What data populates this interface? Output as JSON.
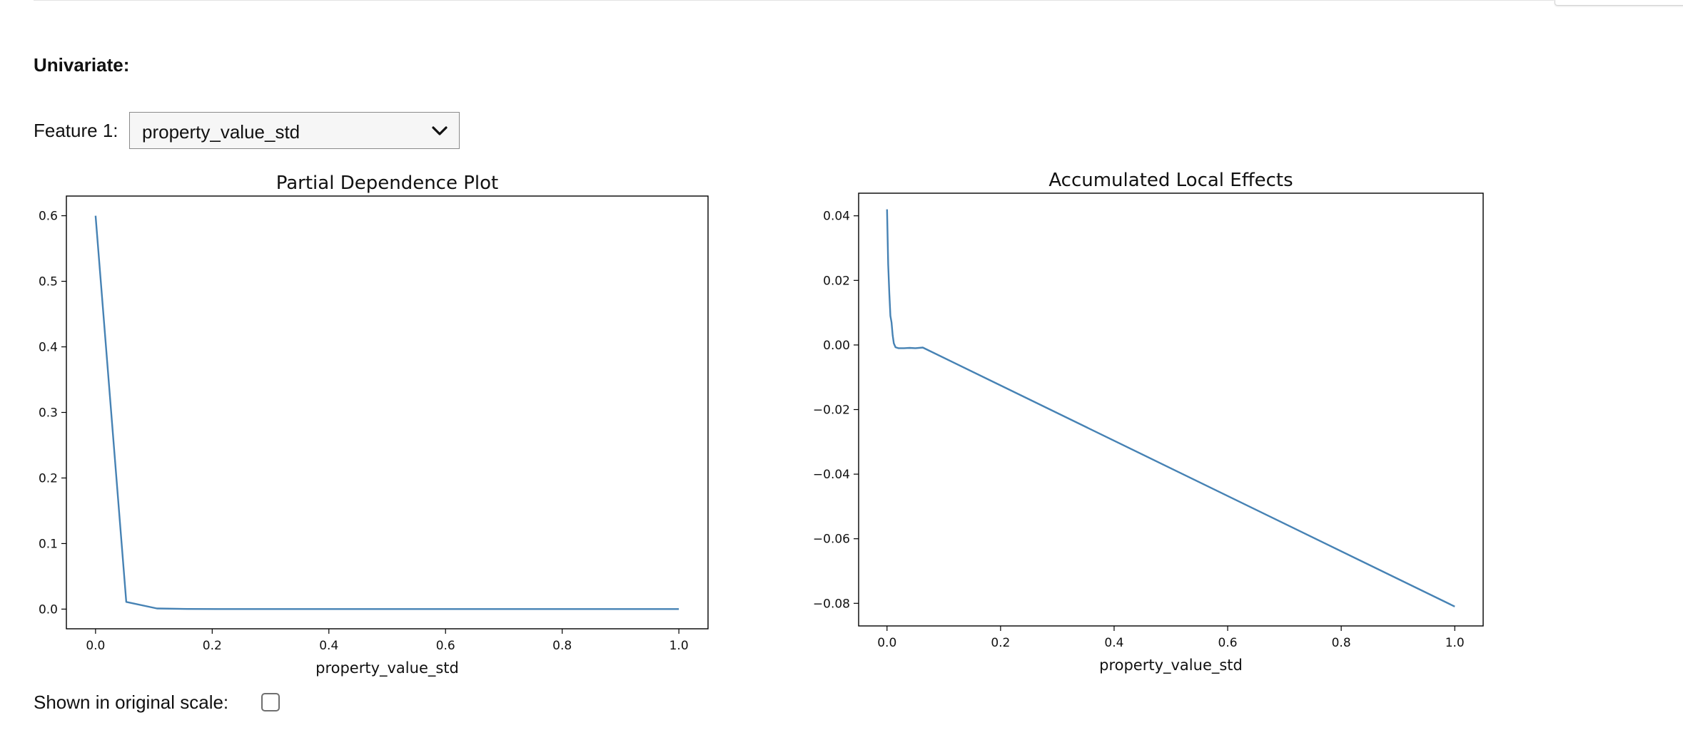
{
  "section": {
    "title": "Univariate:"
  },
  "feature_selector": {
    "label": "Feature 1:",
    "selected": "property_value_std",
    "icon": "chevron-down-icon"
  },
  "scale_toggle": {
    "label": "Shown in original scale:",
    "checked": false
  },
  "colors": {
    "line": "#4682b4"
  },
  "chart_data": [
    {
      "type": "line",
      "title": "Partial Dependence Plot",
      "xlabel": "property_value_std",
      "ylabel": "",
      "xlim": [
        -0.05,
        1.05
      ],
      "ylim": [
        -0.03,
        0.63
      ],
      "xticks": [
        0.0,
        0.2,
        0.4,
        0.6,
        0.8,
        1.0
      ],
      "xtick_labels": [
        "0.0",
        "0.2",
        "0.4",
        "0.6",
        "0.8",
        "1.0"
      ],
      "yticks": [
        0.0,
        0.1,
        0.2,
        0.3,
        0.4,
        0.5,
        0.6
      ],
      "ytick_labels": [
        "0.0",
        "0.1",
        "0.2",
        "0.3",
        "0.4",
        "0.5",
        "0.6"
      ],
      "grid": false,
      "series": [
        {
          "x": [
            0.0,
            0.0526,
            0.1053,
            0.1579,
            0.2105,
            0.2632,
            0.3158,
            0.3684,
            0.4211,
            0.4737,
            0.5263,
            0.5789,
            0.6316,
            0.6842,
            0.7368,
            0.7895,
            0.8421,
            0.8947,
            0.9474,
            1.0
          ],
          "y": [
            0.6,
            0.011,
            0.001,
            0.0002,
            0.0001,
            0.0001,
            0.0001,
            0.0001,
            0.0001,
            0.0001,
            0.0001,
            0.0001,
            0.0001,
            0.0001,
            0.0001,
            0.0001,
            0.0001,
            0.0001,
            0.0001,
            0.0001
          ]
        }
      ]
    },
    {
      "type": "line",
      "title": "Accumulated Local Effects",
      "xlabel": "property_value_std",
      "ylabel": "",
      "xlim": [
        -0.05,
        1.05
      ],
      "ylim": [
        -0.087,
        0.047
      ],
      "xticks": [
        0.0,
        0.2,
        0.4,
        0.6,
        0.8,
        1.0
      ],
      "xtick_labels": [
        "0.0",
        "0.2",
        "0.4",
        "0.6",
        "0.8",
        "1.0"
      ],
      "yticks": [
        0.04,
        0.02,
        0.0,
        -0.02,
        -0.04,
        -0.06,
        -0.08
      ],
      "ytick_labels": [
        "0.04",
        "0.02",
        "0.00",
        "−0.02",
        "−0.04",
        "−0.06",
        "−0.08"
      ],
      "grid": false,
      "series": [
        {
          "x": [
            0.0,
            0.002,
            0.004,
            0.006,
            0.008,
            0.01,
            0.012,
            0.015,
            0.02,
            0.03,
            0.04,
            0.05,
            0.063,
            1.0
          ],
          "y": [
            0.042,
            0.025,
            0.016,
            0.009,
            0.007,
            0.003,
            0.0005,
            -0.0007,
            -0.001,
            -0.001,
            -0.0009,
            -0.001,
            -0.0008,
            -0.081
          ]
        }
      ]
    }
  ]
}
